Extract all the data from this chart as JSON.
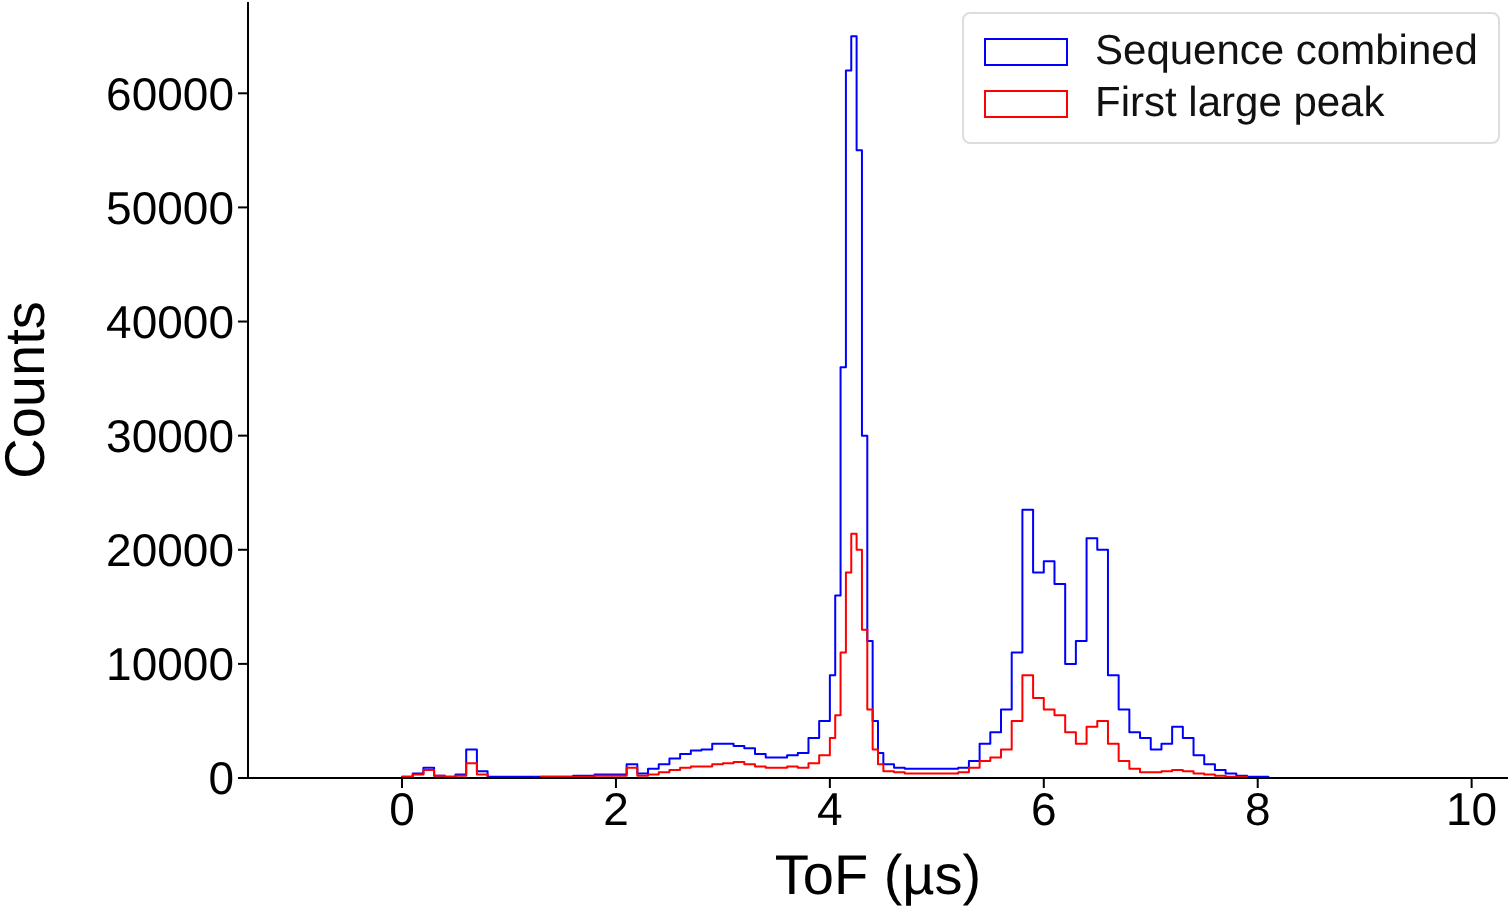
{
  "chart_data": {
    "type": "histogram",
    "xlabel": "ToF (µs)",
    "ylabel": "Counts",
    "bins": [
      -1.0,
      -0.9,
      -0.8,
      -0.7,
      -0.6,
      -0.5,
      -0.4,
      -0.3,
      -0.2,
      -0.1,
      0.0,
      0.1,
      0.2,
      0.3,
      0.4,
      0.5,
      0.6,
      0.7,
      0.8,
      0.9,
      1.0,
      1.1,
      1.2,
      1.3,
      1.4,
      1.5,
      1.6,
      1.7,
      1.8,
      1.9,
      2.0,
      2.1,
      2.2,
      2.3,
      2.4,
      2.5,
      2.6,
      2.7,
      2.8,
      2.9,
      3.0,
      3.1,
      3.2,
      3.3,
      3.4,
      3.5,
      3.6,
      3.7,
      3.8,
      3.9,
      4.0,
      4.05,
      4.1,
      4.15,
      4.2,
      4.25,
      4.3,
      4.35,
      4.4,
      4.45,
      4.5,
      4.6,
      4.7,
      4.8,
      4.9,
      5.0,
      5.1,
      5.2,
      5.3,
      5.4,
      5.5,
      5.6,
      5.7,
      5.8,
      5.9,
      6.0,
      6.1,
      6.2,
      6.3,
      6.4,
      6.5,
      6.6,
      6.7,
      6.8,
      6.9,
      7.0,
      7.1,
      7.2,
      7.3,
      7.4,
      7.5,
      7.6,
      7.7,
      7.8,
      7.9,
      8.0,
      8.1,
      8.2,
      8.3,
      8.4,
      8.5,
      8.6,
      8.7,
      8.8,
      8.9,
      9.0,
      9.1,
      9.2,
      9.3,
      9.4,
      9.5,
      9.6,
      9.7,
      9.8,
      9.9,
      10.0
    ],
    "series": [
      {
        "name": "Sequence combined",
        "color": "#0000ff",
        "values": [
          0,
          0,
          0,
          0,
          0,
          0,
          0,
          0,
          0,
          0,
          100,
          400,
          900,
          200,
          100,
          300,
          2500,
          600,
          100,
          100,
          100,
          100,
          100,
          100,
          100,
          100,
          200,
          200,
          300,
          300,
          300,
          1200,
          400,
          800,
          1200,
          1700,
          2100,
          2400,
          2500,
          3000,
          3000,
          2800,
          2600,
          2100,
          1800,
          1800,
          2000,
          2200,
          3500,
          5000,
          9000,
          16000,
          36000,
          62000,
          65000,
          55000,
          30000,
          12000,
          5000,
          2200,
          1200,
          900,
          800,
          800,
          800,
          800,
          800,
          900,
          1500,
          3000,
          4000,
          6000,
          11000,
          23500,
          18000,
          19000,
          17000,
          10000,
          12000,
          21000,
          20000,
          9000,
          6000,
          4000,
          3500,
          2500,
          3000,
          4500,
          3500,
          2000,
          1200,
          700,
          400,
          200,
          100,
          100,
          0,
          0,
          0,
          0,
          0,
          0,
          0,
          0,
          0,
          0,
          0,
          0,
          0,
          0,
          0,
          0,
          0,
          0,
          0
        ]
      },
      {
        "name": "First large peak",
        "color": "#ff0000",
        "values": [
          0,
          0,
          0,
          0,
          0,
          0,
          0,
          0,
          0,
          0,
          100,
          300,
          700,
          200,
          100,
          200,
          1300,
          300,
          0,
          0,
          0,
          0,
          0,
          100,
          100,
          100,
          100,
          100,
          200,
          200,
          200,
          900,
          200,
          300,
          500,
          700,
          900,
          1000,
          1000,
          1200,
          1300,
          1400,
          1200,
          1000,
          900,
          900,
          1000,
          900,
          1300,
          2000,
          3500,
          5500,
          11000,
          18000,
          21400,
          20000,
          13000,
          6000,
          2500,
          1200,
          600,
          500,
          400,
          400,
          400,
          400,
          400,
          500,
          900,
          1500,
          1800,
          2500,
          5000,
          9000,
          7000,
          6000,
          5500,
          4000,
          3000,
          4500,
          5000,
          3000,
          1500,
          800,
          500,
          500,
          600,
          700,
          600,
          400,
          300,
          200,
          100,
          100,
          0,
          0,
          0,
          0,
          0,
          0,
          0,
          0,
          0,
          0,
          0,
          0,
          0,
          0,
          0,
          0,
          0,
          0,
          0,
          0,
          0
        ]
      }
    ],
    "xlim": [
      -1.44,
      10.34
    ],
    "xticks": [
      0,
      2,
      4,
      6,
      8,
      10
    ],
    "ylim": [
      0,
      68000
    ],
    "yticks": [
      0,
      10000,
      20000,
      30000,
      40000,
      50000,
      60000
    ],
    "legend": "top right"
  }
}
